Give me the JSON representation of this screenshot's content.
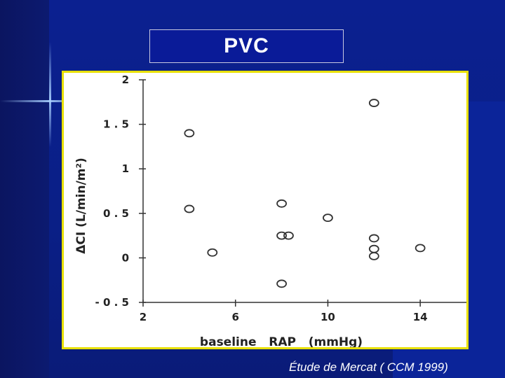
{
  "slide": {
    "title": "PVC",
    "footer": "Étude de Mercat ( CCM 1999)"
  },
  "colors": {
    "background": "#0a1f86",
    "frame_border": "#e8e000",
    "title_text": "#ffffff"
  },
  "chart_data": {
    "type": "scatter",
    "xlabel": "baseline   RAP   (mmHg)",
    "ylabel": "ΔCI  (L/min/m²)",
    "xlim": [
      2,
      16
    ],
    "ylim": [
      -0.5,
      2
    ],
    "xticks": [
      2,
      6,
      10,
      14
    ],
    "xtick_labels": [
      "2",
      "6",
      "10",
      "14"
    ],
    "yticks": [
      -0.5,
      0,
      0.5,
      1,
      1.5,
      2
    ],
    "ytick_labels": [
      "- 0 . 5",
      "0",
      "0 . 5",
      "1",
      "1 . 5",
      "2"
    ],
    "grid": false,
    "marker": "open-circle",
    "points": [
      {
        "x": 4,
        "y": 1.4
      },
      {
        "x": 4,
        "y": 0.55
      },
      {
        "x": 5,
        "y": 0.06
      },
      {
        "x": 8,
        "y": 0.61
      },
      {
        "x": 8,
        "y": 0.25
      },
      {
        "x": 8.3,
        "y": 0.25
      },
      {
        "x": 8,
        "y": -0.29
      },
      {
        "x": 10,
        "y": 0.45
      },
      {
        "x": 12,
        "y": 1.74
      },
      {
        "x": 12,
        "y": 0.22
      },
      {
        "x": 12,
        "y": 0.1
      },
      {
        "x": 12,
        "y": 0.02
      },
      {
        "x": 14,
        "y": 0.11
      }
    ]
  }
}
